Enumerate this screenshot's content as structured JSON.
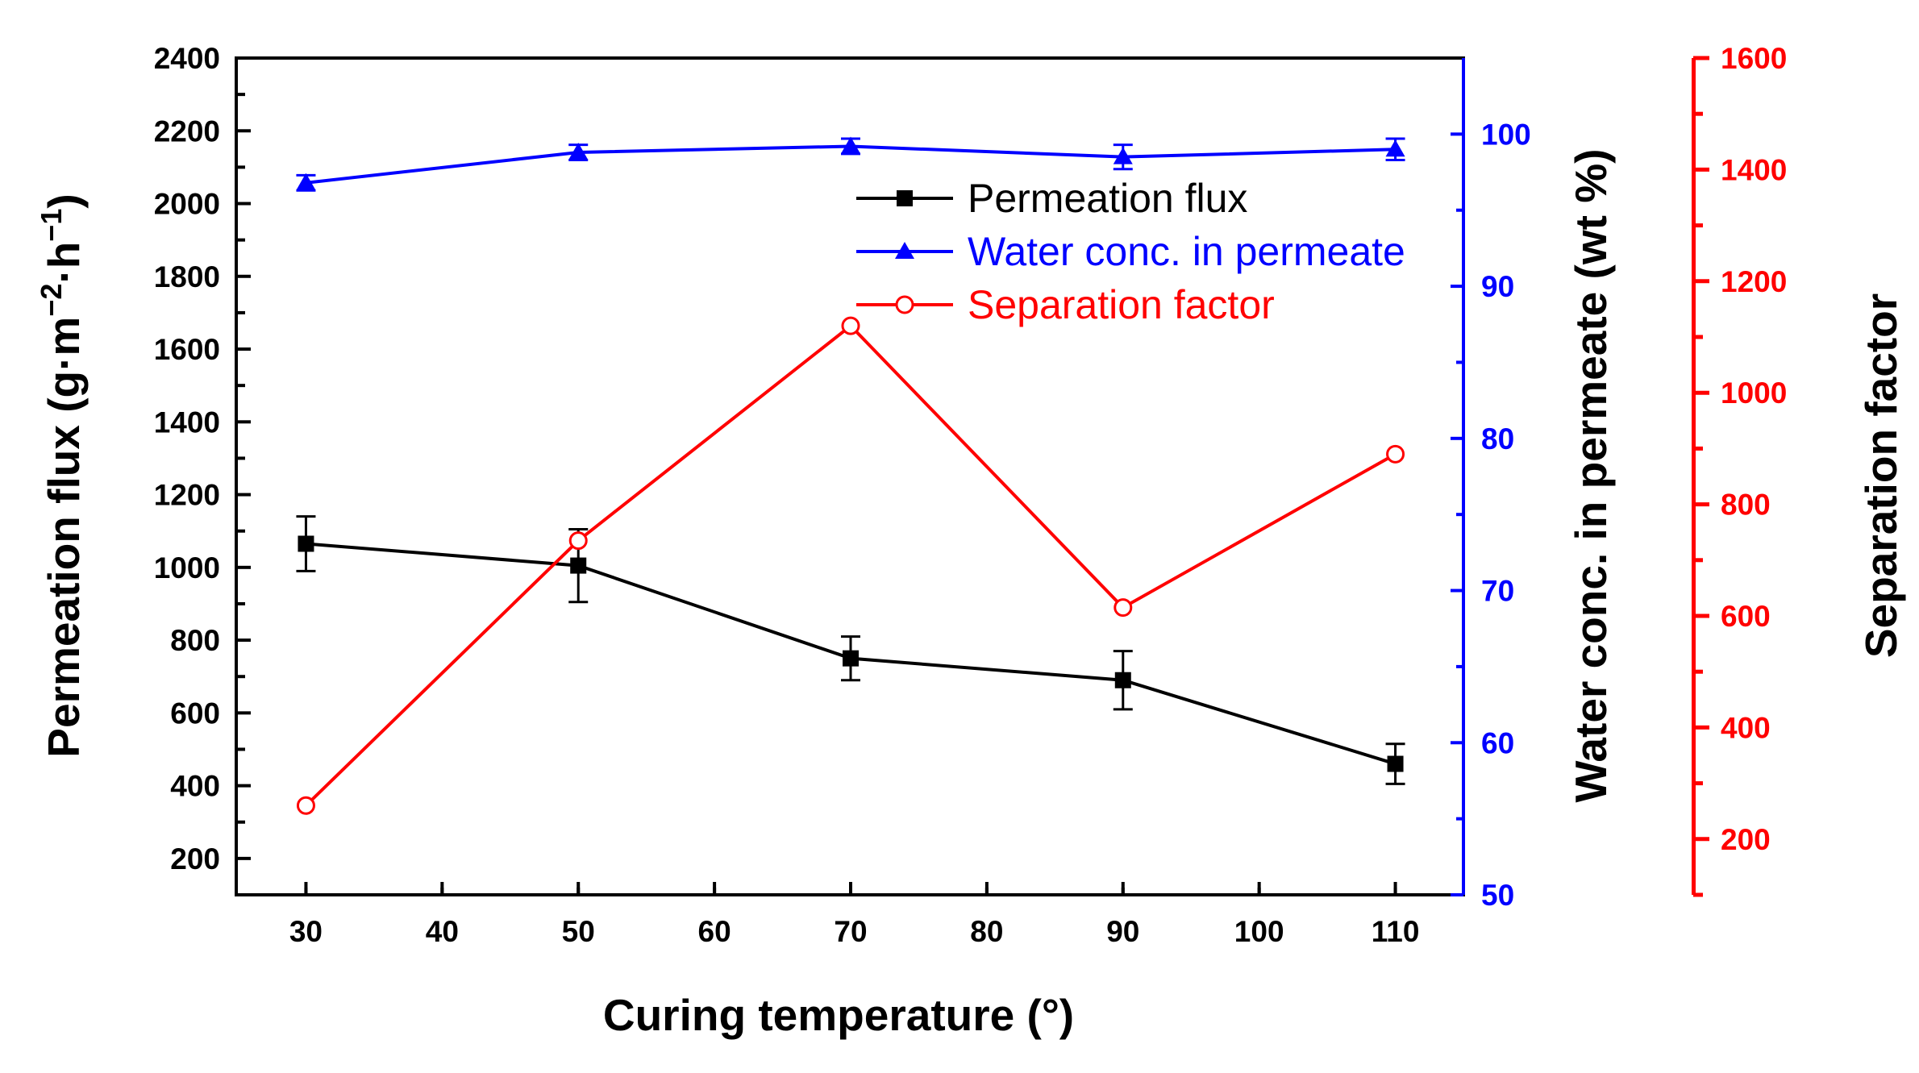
{
  "chart_data": {
    "type": "line",
    "xlabel": "Curing temperature (°)",
    "x": [
      30,
      50,
      70,
      90,
      110
    ],
    "xlim": [
      25,
      115
    ],
    "xticks": [
      30,
      40,
      50,
      60,
      70,
      80,
      90,
      100,
      110
    ],
    "colors": {
      "flux": "#000000",
      "water": "#0000ff",
      "sep": "#ff0000"
    },
    "axes": {
      "left": {
        "label_main": "Permeation flux (g·m",
        "label_sup1": "−2",
        "label_mid": "·h",
        "label_sup2": "−1",
        "label_end": ")",
        "ylim": [
          100,
          2400
        ],
        "ticks": [
          200,
          400,
          600,
          800,
          1000,
          1200,
          1400,
          1600,
          1800,
          2000,
          2200,
          2400
        ]
      },
      "right_blue": {
        "label": "Water conc. in permeate (wt %)",
        "ylim": [
          50,
          105
        ],
        "ticks": [
          50,
          60,
          70,
          80,
          90,
          100
        ]
      },
      "right_red": {
        "label": "Separation factor",
        "ylim": [
          100,
          1600
        ],
        "ticks": [
          200,
          400,
          600,
          800,
          1000,
          1200,
          1400,
          1600
        ]
      }
    },
    "series": [
      {
        "key": "flux",
        "name": "Permeation flux",
        "axis": "left",
        "marker": "square",
        "values": [
          1065,
          1005,
          750,
          690,
          460
        ],
        "errors": [
          75,
          100,
          60,
          80,
          55
        ]
      },
      {
        "key": "water",
        "name": "Water conc. in permeate",
        "axis": "right_blue",
        "marker": "triangle",
        "values": [
          96.8,
          98.8,
          99.2,
          98.5,
          99.0
        ],
        "errors": [
          0.5,
          0.5,
          0.5,
          0.8,
          0.7
        ]
      },
      {
        "key": "sep",
        "name": "Separation factor",
        "axis": "right_red",
        "marker": "circle-open",
        "values": [
          260,
          735,
          1120,
          615,
          890
        ],
        "errors": [
          0,
          0,
          0,
          0,
          0
        ]
      }
    ],
    "legend_position": "top-right"
  }
}
